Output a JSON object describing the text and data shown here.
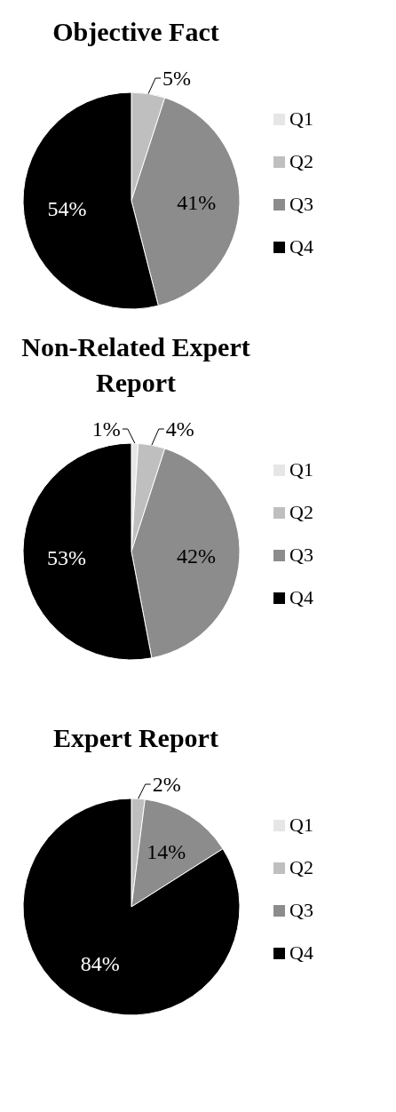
{
  "chart_data": [
    {
      "type": "pie",
      "title": "Objective Fact",
      "categories": [
        "Q1",
        "Q2",
        "Q3",
        "Q4"
      ],
      "values": [
        0,
        5,
        41,
        54
      ],
      "value_labels": [
        null,
        "5%",
        "41%",
        "54%"
      ],
      "colors": [
        "#e6e6e6",
        "#bfbfbf",
        "#8c8c8c",
        "#000000"
      ],
      "legend": "right"
    },
    {
      "type": "pie",
      "title": "Non-Related Expert Report",
      "categories": [
        "Q1",
        "Q2",
        "Q3",
        "Q4"
      ],
      "values": [
        1,
        4,
        42,
        53
      ],
      "value_labels": [
        "1%",
        "4%",
        "42%",
        "53%"
      ],
      "colors": [
        "#e6e6e6",
        "#bfbfbf",
        "#8c8c8c",
        "#000000"
      ],
      "legend": "right"
    },
    {
      "type": "pie",
      "title": "Expert Report",
      "categories": [
        "Q1",
        "Q2",
        "Q3",
        "Q4"
      ],
      "values": [
        0,
        2,
        14,
        84
      ],
      "value_labels": [
        null,
        "2%",
        "14%",
        "84%"
      ],
      "colors": [
        "#e6e6e6",
        "#bfbfbf",
        "#8c8c8c",
        "#000000"
      ],
      "legend": "right"
    }
  ]
}
